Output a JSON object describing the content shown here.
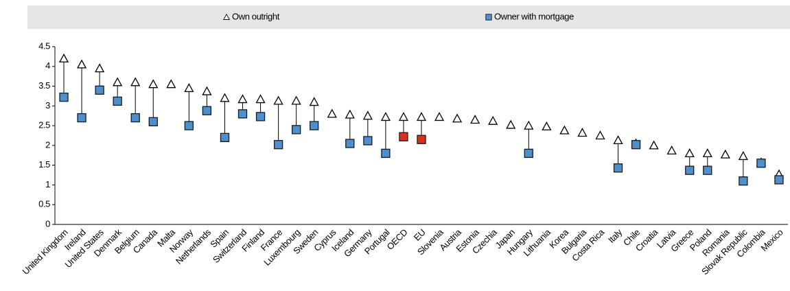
{
  "chart_data": {
    "type": "dot",
    "categories": [
      "United Kingdom",
      "Ireland",
      "United States",
      "Denmark",
      "Belgium",
      "Canada",
      "Malta",
      "Norway",
      "Netherlands",
      "Spain",
      "Switzerland",
      "Finland",
      "France",
      "Luxembourg",
      "Sweden",
      "Cyprus",
      "Iceland",
      "Germany",
      "Portugal",
      "OECD",
      "EU",
      "Slovenia",
      "Austria",
      "Estonia",
      "Czechia",
      "Japan",
      "Hungary",
      "Lithuania",
      "Korea",
      "Bulgaria",
      "Costa Rica",
      "Italy",
      "Chile",
      "Croatia",
      "Latvia",
      "Greece",
      "Poland",
      "Romania",
      "Slovak Republic",
      "Colombia",
      "Mexico"
    ],
    "series": [
      {
        "name": "Own outright",
        "marker": "triangle",
        "color": "#ffffff",
        "values": [
          4.2,
          4.05,
          3.95,
          3.6,
          3.6,
          3.55,
          3.55,
          3.45,
          3.37,
          3.2,
          3.17,
          3.17,
          3.13,
          3.13,
          3.1,
          2.8,
          2.78,
          2.75,
          2.72,
          2.72,
          2.72,
          2.72,
          2.68,
          2.65,
          2.62,
          2.52,
          2.5,
          2.48,
          2.38,
          2.32,
          2.25,
          2.13,
          2.05,
          2.0,
          1.87,
          1.8,
          1.8,
          1.77,
          1.73,
          1.57,
          1.27
        ]
      },
      {
        "name": "Owner with mortgage",
        "marker": "square",
        "color": "#4f8fcc",
        "values": [
          3.22,
          2.7,
          3.4,
          3.12,
          2.7,
          2.6,
          null,
          2.5,
          2.88,
          2.2,
          2.8,
          2.73,
          2.02,
          2.4,
          2.5,
          null,
          2.05,
          2.12,
          1.8,
          2.22,
          2.15,
          null,
          null,
          null,
          null,
          null,
          1.8,
          null,
          null,
          null,
          null,
          1.43,
          2.02,
          null,
          null,
          1.37,
          1.37,
          null,
          1.1,
          1.55,
          1.13
        ],
        "point_colors": [
          "#4f8fcc",
          "#4f8fcc",
          "#4f8fcc",
          "#4f8fcc",
          "#4f8fcc",
          "#4f8fcc",
          "#4f8fcc",
          "#4f8fcc",
          "#4f8fcc",
          "#4f8fcc",
          "#4f8fcc",
          "#4f8fcc",
          "#4f8fcc",
          "#4f8fcc",
          "#4f8fcc",
          "#4f8fcc",
          "#4f8fcc",
          "#4f8fcc",
          "#4f8fcc",
          "#d9311f",
          "#d9311f",
          "#4f8fcc",
          "#4f8fcc",
          "#4f8fcc",
          "#4f8fcc",
          "#4f8fcc",
          "#4f8fcc",
          "#4f8fcc",
          "#4f8fcc",
          "#4f8fcc",
          "#4f8fcc",
          "#4f8fcc",
          "#4f8fcc",
          "#4f8fcc",
          "#4f8fcc",
          "#4f8fcc",
          "#4f8fcc",
          "#4f8fcc",
          "#4f8fcc",
          "#4f8fcc",
          "#4f8fcc"
        ]
      }
    ],
    "ylim": [
      0,
      4.5
    ],
    "yticks": [
      0,
      0.5,
      1,
      1.5,
      2,
      2.5,
      3,
      3.5,
      4,
      4.5
    ],
    "grid": false
  }
}
